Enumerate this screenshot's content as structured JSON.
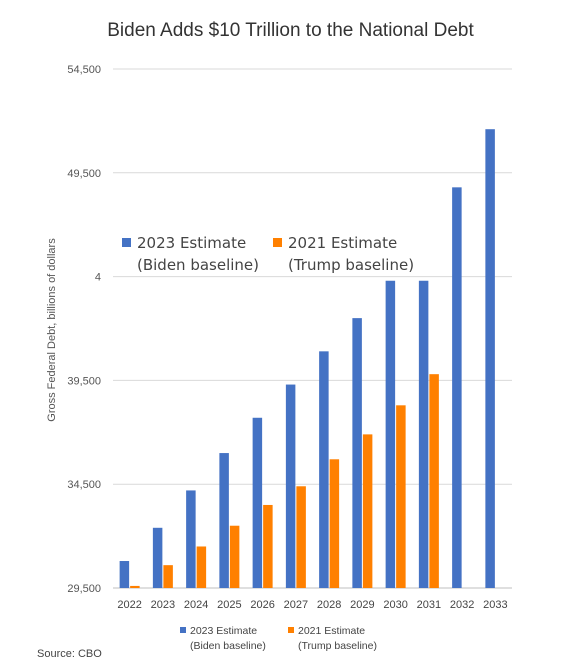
{
  "chart_data": {
    "type": "bar",
    "title": "Biden Adds $10 Trillion to the National Debt",
    "ylabel": "Gross Federal Debt, billions of dollars",
    "xlabel": "",
    "ylim": [
      29500,
      54500
    ],
    "yticks": [
      "29,500",
      "34,500",
      "39,500",
      "",
      "49,500",
      "54,500"
    ],
    "ytick_values": [
      29500,
      34500,
      39500,
      44500,
      49500,
      54500
    ],
    "partial_tick_label": "4",
    "grid": true,
    "categories": [
      "2022",
      "2023",
      "2024",
      "2025",
      "2026",
      "2027",
      "2028",
      "2029",
      "2030",
      "2031",
      "2032",
      "2033"
    ],
    "series": [
      {
        "name_line1": "2023 Estimate",
        "name_line2": "(Biden baseline)",
        "color": "#4472C4",
        "values": [
          30800,
          32400,
          34200,
          36000,
          37700,
          39300,
          40900,
          42500,
          44300,
          44300,
          48800,
          51600
        ]
      },
      {
        "name_line1": "2021 Estimate",
        "name_line2": "(Trump baseline)",
        "color": "#FF8000",
        "values": [
          29600,
          30600,
          31500,
          32500,
          33500,
          34400,
          35700,
          36900,
          38300,
          39800,
          null,
          null
        ]
      }
    ],
    "legend_placement": "upper-left inside plot, repeated below x-axis"
  },
  "source": "Source: CBO"
}
